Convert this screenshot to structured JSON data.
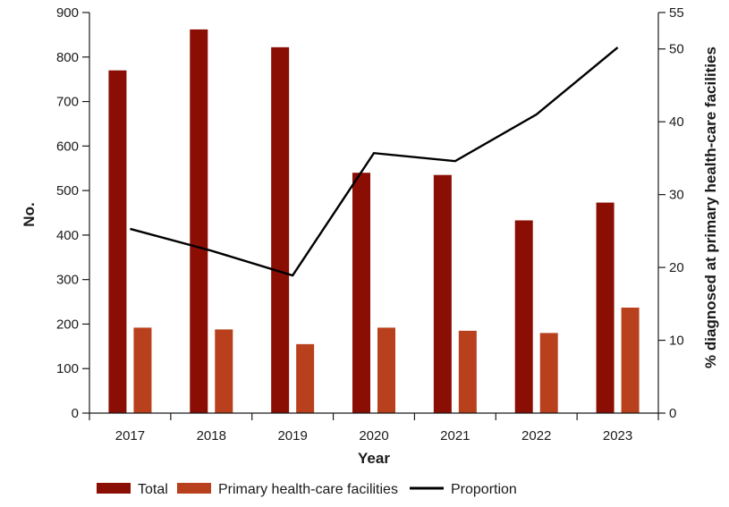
{
  "chart_data": {
    "type": "bar",
    "title": "",
    "xlabel": "Year",
    "ylabel": "No.",
    "y2label": "% diagnosed at primary health-care facilities",
    "categories": [
      "2017",
      "2018",
      "2019",
      "2020",
      "2021",
      "2022",
      "2023"
    ],
    "ylim": [
      0,
      900
    ],
    "yticks": [
      0,
      100,
      200,
      300,
      400,
      500,
      600,
      700,
      800,
      900
    ],
    "y2lim": [
      0,
      55
    ],
    "y2ticks": [
      0,
      10,
      20,
      30,
      40,
      50,
      55
    ],
    "series": [
      {
        "name": "Total",
        "type": "bar",
        "axis": "left",
        "color": "#8b0e04",
        "values": [
          770,
          862,
          822,
          540,
          535,
          433,
          473
        ]
      },
      {
        "name": "Primary health-care facilities",
        "type": "bar",
        "axis": "left",
        "color": "#b9401d",
        "values": [
          192,
          188,
          155,
          192,
          185,
          180,
          237
        ]
      },
      {
        "name": "Proportion",
        "type": "line",
        "axis": "right",
        "color": "#000000",
        "values": [
          25.3,
          22.3,
          18.9,
          35.7,
          34.6,
          41.0,
          50.2
        ]
      }
    ],
    "legend_position": "bottom"
  }
}
